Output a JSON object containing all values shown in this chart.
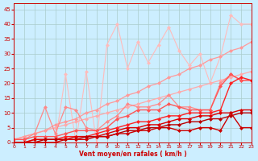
{
  "bg_color": "#cceeff",
  "grid_color": "#aacccc",
  "xlabel": "Vent moyen/en rafales ( km/h )",
  "xlabel_color": "#cc0000",
  "tick_color": "#cc0000",
  "ylim": [
    0,
    47
  ],
  "xlim": [
    0,
    23
  ],
  "yticks": [
    0,
    5,
    10,
    15,
    20,
    25,
    30,
    35,
    40,
    45
  ],
  "xticks": [
    0,
    1,
    2,
    3,
    4,
    5,
    6,
    7,
    8,
    9,
    10,
    11,
    12,
    13,
    14,
    15,
    16,
    17,
    18,
    19,
    20,
    21,
    22,
    23
  ],
  "series": [
    {
      "x": [
        0,
        1,
        2,
        3,
        4,
        5,
        6,
        7,
        8,
        9,
        10,
        11,
        12,
        13,
        14,
        15,
        16,
        17,
        18,
        19,
        20,
        21,
        22,
        23
      ],
      "y": [
        0,
        0,
        0,
        0,
        0,
        23,
        0,
        24,
        0,
        33,
        40,
        25,
        34,
        27,
        33,
        39,
        31,
        26,
        30,
        20,
        29,
        43,
        40,
        40
      ],
      "color": "#ffbbbb",
      "lw": 0.8,
      "ms": 2.5,
      "marker": "D"
    },
    {
      "x": [
        0,
        1,
        2,
        3,
        4,
        5,
        6,
        7,
        8,
        9,
        10,
        11,
        12,
        13,
        14,
        15,
        16,
        17,
        18,
        19,
        20,
        21,
        22,
        23
      ],
      "y": [
        1,
        2,
        3,
        4,
        5,
        6,
        7,
        8,
        9,
        10,
        11,
        12,
        13,
        14,
        15,
        16,
        17,
        18,
        19,
        20,
        21,
        22,
        23,
        24
      ],
      "color": "#ffaaaa",
      "lw": 0.9,
      "ms": 2.5,
      "marker": "D"
    },
    {
      "x": [
        0,
        1,
        2,
        3,
        4,
        5,
        6,
        7,
        8,
        9,
        10,
        11,
        12,
        13,
        14,
        15,
        16,
        17,
        18,
        19,
        20,
        21,
        22,
        23
      ],
      "y": [
        1,
        2,
        3,
        4,
        6,
        7,
        8,
        10,
        11,
        13,
        14,
        16,
        17,
        19,
        20,
        22,
        23,
        25,
        26,
        28,
        29,
        31,
        32,
        34
      ],
      "color": "#ff9999",
      "lw": 0.9,
      "ms": 2.5,
      "marker": "D"
    },
    {
      "x": [
        0,
        1,
        2,
        3,
        4,
        5,
        6,
        7,
        8,
        9,
        10,
        11,
        12,
        13,
        14,
        15,
        16,
        17,
        18,
        19,
        20,
        21,
        22,
        23
      ],
      "y": [
        1,
        1,
        3,
        12,
        3,
        12,
        11,
        5,
        4,
        7,
        9,
        13,
        12,
        12,
        13,
        16,
        12,
        12,
        11,
        11,
        20,
        23,
        21,
        21
      ],
      "color": "#ff8888",
      "lw": 0.9,
      "ms": 2.5,
      "marker": "D"
    },
    {
      "x": [
        0,
        1,
        2,
        3,
        4,
        5,
        6,
        7,
        8,
        9,
        10,
        11,
        12,
        13,
        14,
        15,
        16,
        17,
        18,
        19,
        20,
        21,
        22,
        23
      ],
      "y": [
        1,
        1,
        2,
        2,
        2,
        3,
        4,
        4,
        4,
        5,
        8,
        9,
        11,
        11,
        11,
        13,
        12,
        11,
        11,
        11,
        19,
        23,
        21,
        21
      ],
      "color": "#ff5555",
      "lw": 1.0,
      "ms": 2.5,
      "marker": "D"
    },
    {
      "x": [
        0,
        1,
        2,
        3,
        4,
        5,
        6,
        7,
        8,
        9,
        10,
        11,
        12,
        13,
        14,
        15,
        16,
        17,
        18,
        19,
        20,
        21,
        22,
        23
      ],
      "y": [
        0,
        0,
        1,
        1,
        1,
        2,
        2,
        2,
        3,
        4,
        5,
        6,
        7,
        7,
        8,
        9,
        9,
        10,
        10,
        10,
        11,
        20,
        22,
        21
      ],
      "color": "#ff2222",
      "lw": 1.0,
      "ms": 2.5,
      "marker": "D"
    },
    {
      "x": [
        0,
        1,
        2,
        3,
        4,
        5,
        6,
        7,
        8,
        9,
        10,
        11,
        12,
        13,
        14,
        15,
        16,
        17,
        18,
        19,
        20,
        21,
        22,
        23
      ],
      "y": [
        0,
        0,
        1,
        1,
        1,
        1,
        2,
        2,
        2,
        3,
        4,
        5,
        5,
        6,
        6,
        7,
        8,
        8,
        9,
        9,
        10,
        10,
        11,
        11
      ],
      "color": "#dd0000",
      "lw": 1.0,
      "ms": 2.5,
      "marker": "D"
    },
    {
      "x": [
        0,
        1,
        2,
        3,
        4,
        5,
        6,
        7,
        8,
        9,
        10,
        11,
        12,
        13,
        14,
        15,
        16,
        17,
        18,
        19,
        20,
        21,
        22,
        23
      ],
      "y": [
        0,
        0,
        0,
        1,
        1,
        1,
        1,
        2,
        2,
        2,
        3,
        4,
        4,
        5,
        5,
        6,
        6,
        7,
        7,
        8,
        8,
        9,
        10,
        10
      ],
      "color": "#bb0000",
      "lw": 1.0,
      "ms": 2.5,
      "marker": "D"
    },
    {
      "x": [
        0,
        1,
        2,
        3,
        4,
        5,
        6,
        7,
        8,
        9,
        10,
        11,
        12,
        13,
        14,
        15,
        16,
        17,
        18,
        19,
        20,
        21,
        22,
        23
      ],
      "y": [
        0,
        0,
        0,
        0,
        0,
        1,
        1,
        1,
        2,
        2,
        3,
        3,
        4,
        4,
        5,
        5,
        4,
        4,
        5,
        5,
        4,
        10,
        5,
        5
      ],
      "color": "#cc0000",
      "lw": 1.0,
      "ms": 2.5,
      "marker": "D"
    }
  ]
}
